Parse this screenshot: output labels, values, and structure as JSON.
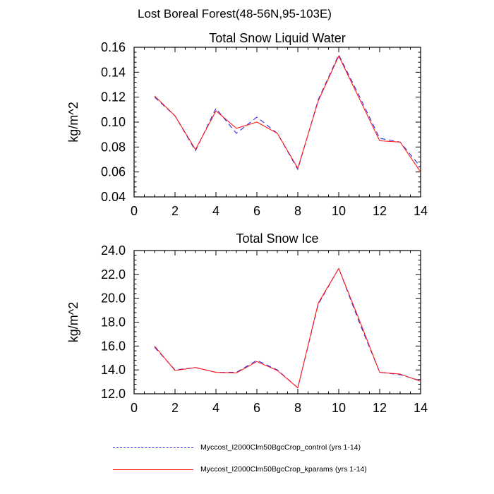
{
  "figure_title": "Lost Boreal Forest(48-56N,95-103E)",
  "colors": {
    "control": "#2a2ae6",
    "kparams": "#ff1a1a",
    "axis": "#000000"
  },
  "legend": [
    {
      "series": "control",
      "label": "Myccost_I2000Clm50BgcCrop_control (yrs 1-14)",
      "style": "dashed"
    },
    {
      "series": "kparams",
      "label": "Myccost_I2000Clm50BgcCrop_kparams (yrs 1-14)",
      "style": "solid"
    }
  ],
  "chart_data": [
    {
      "type": "line",
      "title": "Total Snow Liquid Water",
      "xlabel": "",
      "ylabel": "kg/m^2",
      "xlim": [
        0,
        14
      ],
      "ylim": [
        0.04,
        0.16
      ],
      "xticks": [
        0,
        2,
        4,
        6,
        8,
        10,
        12,
        14
      ],
      "yticks": [
        "0.04",
        "0.06",
        "0.08",
        "0.10",
        "0.12",
        "0.14",
        "0.16"
      ],
      "x": [
        1,
        2,
        3,
        4,
        5,
        6,
        7,
        8,
        9,
        10,
        11,
        12,
        13,
        14
      ],
      "series": [
        {
          "name": "control",
          "values": [
            0.12,
            0.105,
            0.077,
            0.111,
            0.091,
            0.104,
            0.091,
            0.062,
            0.118,
            0.154,
            0.121,
            0.087,
            0.084,
            0.064
          ]
        },
        {
          "name": "kparams",
          "values": [
            0.121,
            0.105,
            0.078,
            0.109,
            0.095,
            0.1,
            0.091,
            0.063,
            0.117,
            0.153,
            0.119,
            0.085,
            0.084,
            0.06
          ]
        }
      ]
    },
    {
      "type": "line",
      "title": "Total Snow Ice",
      "xlabel": "",
      "ylabel": "kg/m^2",
      "xlim": [
        0,
        14
      ],
      "ylim": [
        12.0,
        24.0
      ],
      "xticks": [
        0,
        2,
        4,
        6,
        8,
        10,
        12,
        14
      ],
      "yticks": [
        "12.0",
        "14.0",
        "16.0",
        "18.0",
        "20.0",
        "22.0",
        "24.0"
      ],
      "x": [
        1,
        2,
        3,
        4,
        5,
        6,
        7,
        8,
        9,
        10,
        11,
        12,
        13,
        14
      ],
      "series": [
        {
          "name": "control",
          "values": [
            15.9,
            14.0,
            14.2,
            13.8,
            13.8,
            14.8,
            14.0,
            12.5,
            19.5,
            22.5,
            18.0,
            13.8,
            13.6,
            13.1
          ]
        },
        {
          "name": "kparams",
          "values": [
            16.0,
            13.95,
            14.2,
            13.8,
            13.75,
            14.7,
            13.95,
            12.5,
            19.6,
            22.5,
            18.2,
            13.8,
            13.65,
            13.05
          ]
        }
      ]
    }
  ]
}
